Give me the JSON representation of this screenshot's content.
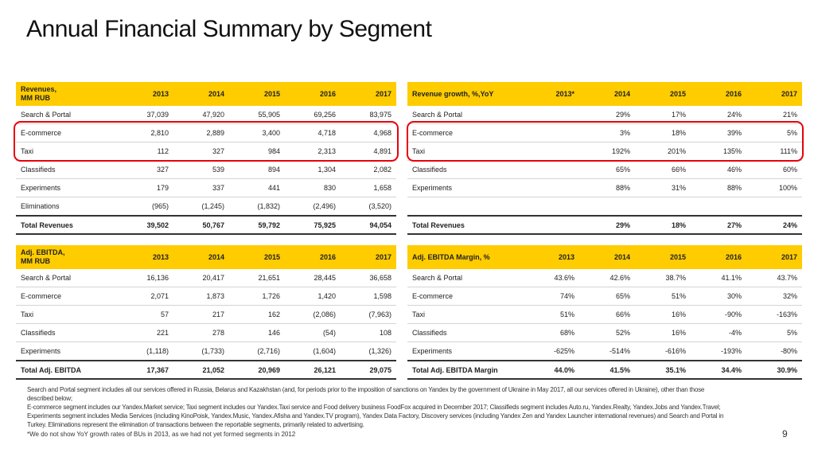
{
  "title": "Annual Financial Summary by Segment",
  "tables": {
    "revenues": {
      "header": [
        "Revenues,\nMM RUB",
        "2013",
        "2014",
        "2015",
        "2016",
        "2017"
      ],
      "rows": [
        [
          "Search & Portal",
          "37,039",
          "47,920",
          "55,905",
          "69,256",
          "83,975"
        ],
        [
          "E-commerce",
          "2,810",
          "2,889",
          "3,400",
          "4,718",
          "4,968"
        ],
        [
          "Taxi",
          "112",
          "327",
          "984",
          "2,313",
          "4,891"
        ],
        [
          "Classifieds",
          "327",
          "539",
          "894",
          "1,304",
          "2,082"
        ],
        [
          "Experiments",
          "179",
          "337",
          "441",
          "830",
          "1,658"
        ],
        [
          "Eliminations",
          "(965)",
          "(1,245)",
          "(1,832)",
          "(2,496)",
          "(3,520)"
        ]
      ],
      "total": [
        "Total Revenues",
        "39,502",
        "50,767",
        "59,792",
        "75,925",
        "94,054"
      ]
    },
    "growth": {
      "header": [
        "Revenue growth, %,YoY",
        "2013*",
        "2014",
        "2015",
        "2016",
        "2017"
      ],
      "rows": [
        [
          "Search & Portal",
          "",
          "29%",
          "17%",
          "24%",
          "21%"
        ],
        [
          "E-commerce",
          "",
          "3%",
          "18%",
          "39%",
          "5%"
        ],
        [
          "Taxi",
          "",
          "192%",
          "201%",
          "135%",
          "111%"
        ],
        [
          "Classifieds",
          "",
          "65%",
          "66%",
          "46%",
          "60%"
        ],
        [
          "Experiments",
          "",
          "88%",
          "31%",
          "88%",
          "100%"
        ],
        [
          "",
          "",
          "",
          "",
          "",
          ""
        ]
      ],
      "total": [
        "Total Revenues",
        "",
        "29%",
        "18%",
        "27%",
        "24%"
      ]
    },
    "ebitda": {
      "header": [
        "Adj. EBITDA,\nMM RUB",
        "2013",
        "2014",
        "2015",
        "2016",
        "2017"
      ],
      "rows": [
        [
          "Search & Portal",
          "16,136",
          "20,417",
          "21,651",
          "28,445",
          "36,658"
        ],
        [
          "E-commerce",
          "2,071",
          "1,873",
          "1,726",
          "1,420",
          "1,598"
        ],
        [
          "Taxi",
          "57",
          "217",
          "162",
          "(2,086)",
          "(7,963)"
        ],
        [
          "Classifieds",
          "221",
          "278",
          "146",
          "(54)",
          "108"
        ],
        [
          "Experiments",
          "(1,118)",
          "(1,733)",
          "(2,716)",
          "(1,604)",
          "(1,326)"
        ]
      ],
      "total": [
        "Total Adj. EBITDA",
        "17,367",
        "21,052",
        "20,969",
        "26,121",
        "29,075"
      ]
    },
    "margin": {
      "header": [
        "Adj. EBITDA Margin, %",
        "2013",
        "2014",
        "2015",
        "2016",
        "2017"
      ],
      "rows": [
        [
          "Search & Portal",
          "43.6%",
          "42.6%",
          "38.7%",
          "41.1%",
          "43.7%"
        ],
        [
          "E-commerce",
          "74%",
          "65%",
          "51%",
          "30%",
          "32%"
        ],
        [
          "Taxi",
          "51%",
          "66%",
          "16%",
          "-90%",
          "-163%"
        ],
        [
          "Classifieds",
          "68%",
          "52%",
          "16%",
          "-4%",
          "5%"
        ],
        [
          "Experiments",
          "-625%",
          "-514%",
          "-616%",
          "-193%",
          "-80%"
        ]
      ],
      "total": [
        "Total Adj. EBITDA Margin",
        "44.0%",
        "41.5%",
        "35.1%",
        "34.4%",
        "30.9%"
      ]
    }
  },
  "footnotes": {
    "p1": "Search and Portal segment includes all our services offered in Russia, Belarus and Kazakhstan (and, for periods prior to the imposition of sanctions on Yandex by the government of Ukraine in May 2017, all our services offered in Ukraine), other than those described below;",
    "p2": "E-commerce segment includes our Yandex.Market service; Taxi segment includes our Yandex.Taxi service and Food delivery business FoodFox acquired in December 2017; Classifieds segment includes Auto.ru, Yandex.Realty, Yandex.Jobs and Yandex.Travel; Experiments segment includes Media Services (including KinoPoisk, Yandex.Music, Yandex.Afisha and Yandex.TV program), Yandex Data Factory, Discovery services (including Yandex Zen and Yandex Launcher international revenues) and Search and Portal in Turkey. Eliminations represent the elimination of transactions between the reportable segments, primarily related to advertising.",
    "note": "*We do not show YoY growth rates  of BUs in 2013, as we had not yet formed segments in 2012"
  },
  "page_number": "9",
  "colors": {
    "header_bg": "#ffcc00",
    "highlight": "#e8000b"
  }
}
